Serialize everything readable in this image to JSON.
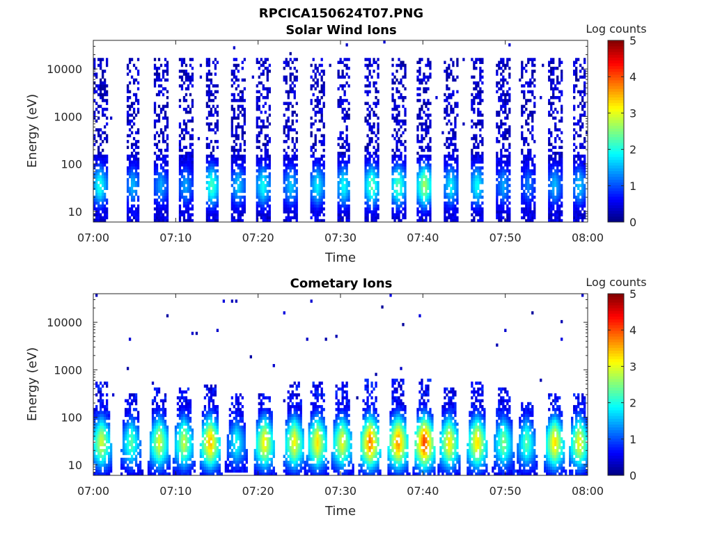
{
  "figure": {
    "title": "RPCICA150624T07.PNG"
  },
  "chart_data": [
    {
      "type": "heatmap",
      "title": "Solar Wind Ions",
      "xlabel": "Time",
      "ylabel": "Energy (eV)",
      "x_range": [
        "07:00",
        "08:00"
      ],
      "x_ticks": [
        "07:00",
        "07:10",
        "07:20",
        "07:30",
        "07:40",
        "07:50",
        "08:00"
      ],
      "y_scale": "log",
      "y_range": [
        6,
        40000
      ],
      "y_ticks": [
        10,
        100,
        1000,
        10000
      ],
      "y_tick_labels": [
        "10",
        "100",
        "1000",
        "10000"
      ],
      "colorbar": {
        "label": "Log counts",
        "range": [
          0,
          5
        ],
        "ticks": [
          "0",
          "1",
          "2",
          "3",
          "4",
          "5"
        ],
        "colormap": "jet"
      },
      "grid": false,
      "sweep_period_minutes": 3.2,
      "bursts": [
        {
          "t_min": 0.8,
          "e_low": 6,
          "e_high": 16000,
          "core_log_counts": 2.1
        },
        {
          "t_min": 4.8,
          "e_low": 6,
          "e_high": 16000,
          "core_log_counts": 1.6
        },
        {
          "t_min": 8.2,
          "e_low": 6,
          "e_high": 16000,
          "core_log_counts": 1.5
        },
        {
          "t_min": 11.2,
          "e_low": 6,
          "e_high": 16000,
          "core_log_counts": 1.5
        },
        {
          "t_min": 14.4,
          "e_low": 6,
          "e_high": 16000,
          "core_log_counts": 2.3
        },
        {
          "t_min": 17.6,
          "e_low": 6,
          "e_high": 16000,
          "core_log_counts": 1.7
        },
        {
          "t_min": 20.6,
          "e_low": 6,
          "e_high": 16000,
          "core_log_counts": 2.0
        },
        {
          "t_min": 24.0,
          "e_low": 6,
          "e_high": 16000,
          "core_log_counts": 1.7
        },
        {
          "t_min": 27.2,
          "e_low": 6,
          "e_high": 16000,
          "core_log_counts": 1.9
        },
        {
          "t_min": 30.4,
          "e_low": 6,
          "e_high": 16000,
          "core_log_counts": 2.0
        },
        {
          "t_min": 33.8,
          "e_low": 6,
          "e_high": 16000,
          "core_log_counts": 2.4
        },
        {
          "t_min": 37.0,
          "e_low": 6,
          "e_high": 16000,
          "core_log_counts": 2.4
        },
        {
          "t_min": 40.2,
          "e_low": 6,
          "e_high": 16000,
          "core_log_counts": 2.8
        },
        {
          "t_min": 43.4,
          "e_low": 6,
          "e_high": 16000,
          "core_log_counts": 1.9
        },
        {
          "t_min": 46.6,
          "e_low": 6,
          "e_high": 16000,
          "core_log_counts": 2.0
        },
        {
          "t_min": 49.8,
          "e_low": 6,
          "e_high": 16000,
          "core_log_counts": 1.5
        },
        {
          "t_min": 52.8,
          "e_low": 6,
          "e_high": 16000,
          "core_log_counts": 1.3
        },
        {
          "t_min": 56.0,
          "e_low": 6,
          "e_high": 16000,
          "core_log_counts": 1.6
        },
        {
          "t_min": 59.0,
          "e_low": 6,
          "e_high": 16000,
          "core_log_counts": 1.7
        }
      ]
    },
    {
      "type": "heatmap",
      "title": "Cometary Ions",
      "xlabel": "Time",
      "ylabel": "Energy (eV)",
      "x_range": [
        "07:00",
        "08:00"
      ],
      "x_ticks": [
        "07:00",
        "07:10",
        "07:20",
        "07:30",
        "07:40",
        "07:50",
        "08:00"
      ],
      "y_scale": "log",
      "y_range": [
        6,
        40000
      ],
      "y_ticks": [
        10,
        100,
        1000,
        10000
      ],
      "y_tick_labels": [
        "10",
        "100",
        "1000",
        "10000"
      ],
      "colorbar": {
        "label": "Log counts",
        "range": [
          0,
          5
        ],
        "ticks": [
          "0",
          "1",
          "2",
          "3",
          "4",
          "5"
        ],
        "colormap": "jet"
      },
      "grid": false,
      "sweep_period_minutes": 3.2,
      "bursts": [
        {
          "t_min": 1.0,
          "e_low": 6,
          "e_high": 500,
          "core_log_counts": 3.0
        },
        {
          "t_min": 4.6,
          "e_low": 6,
          "e_high": 300,
          "core_log_counts": 2.4
        },
        {
          "t_min": 8.0,
          "e_low": 6,
          "e_high": 400,
          "core_log_counts": 3.0
        },
        {
          "t_min": 11.0,
          "e_low": 6,
          "e_high": 400,
          "core_log_counts": 2.9
        },
        {
          "t_min": 14.2,
          "e_low": 6,
          "e_high": 500,
          "core_log_counts": 3.6
        },
        {
          "t_min": 17.4,
          "e_low": 8,
          "e_high": 300,
          "core_log_counts": 2.0
        },
        {
          "t_min": 20.8,
          "e_low": 6,
          "e_high": 300,
          "core_log_counts": 3.3
        },
        {
          "t_min": 24.4,
          "e_low": 6,
          "e_high": 500,
          "core_log_counts": 3.2
        },
        {
          "t_min": 27.2,
          "e_low": 6,
          "e_high": 500,
          "core_log_counts": 3.3
        },
        {
          "t_min": 30.2,
          "e_low": 6,
          "e_high": 500,
          "core_log_counts": 3.1
        },
        {
          "t_min": 33.6,
          "e_low": 6,
          "e_high": 600,
          "core_log_counts": 3.9
        },
        {
          "t_min": 37.0,
          "e_low": 6,
          "e_high": 600,
          "core_log_counts": 3.8
        },
        {
          "t_min": 40.2,
          "e_low": 6,
          "e_high": 600,
          "core_log_counts": 4.2
        },
        {
          "t_min": 43.2,
          "e_low": 6,
          "e_high": 400,
          "core_log_counts": 3.3
        },
        {
          "t_min": 46.6,
          "e_low": 6,
          "e_high": 500,
          "core_log_counts": 3.4
        },
        {
          "t_min": 49.8,
          "e_low": 6,
          "e_high": 400,
          "core_log_counts": 2.6
        },
        {
          "t_min": 52.6,
          "e_low": 6,
          "e_high": 200,
          "core_log_counts": 2.4
        },
        {
          "t_min": 56.0,
          "e_low": 6,
          "e_high": 300,
          "core_log_counts": 3.4
        },
        {
          "t_min": 59.0,
          "e_low": 6,
          "e_high": 300,
          "core_log_counts": 3.2
        }
      ]
    }
  ]
}
